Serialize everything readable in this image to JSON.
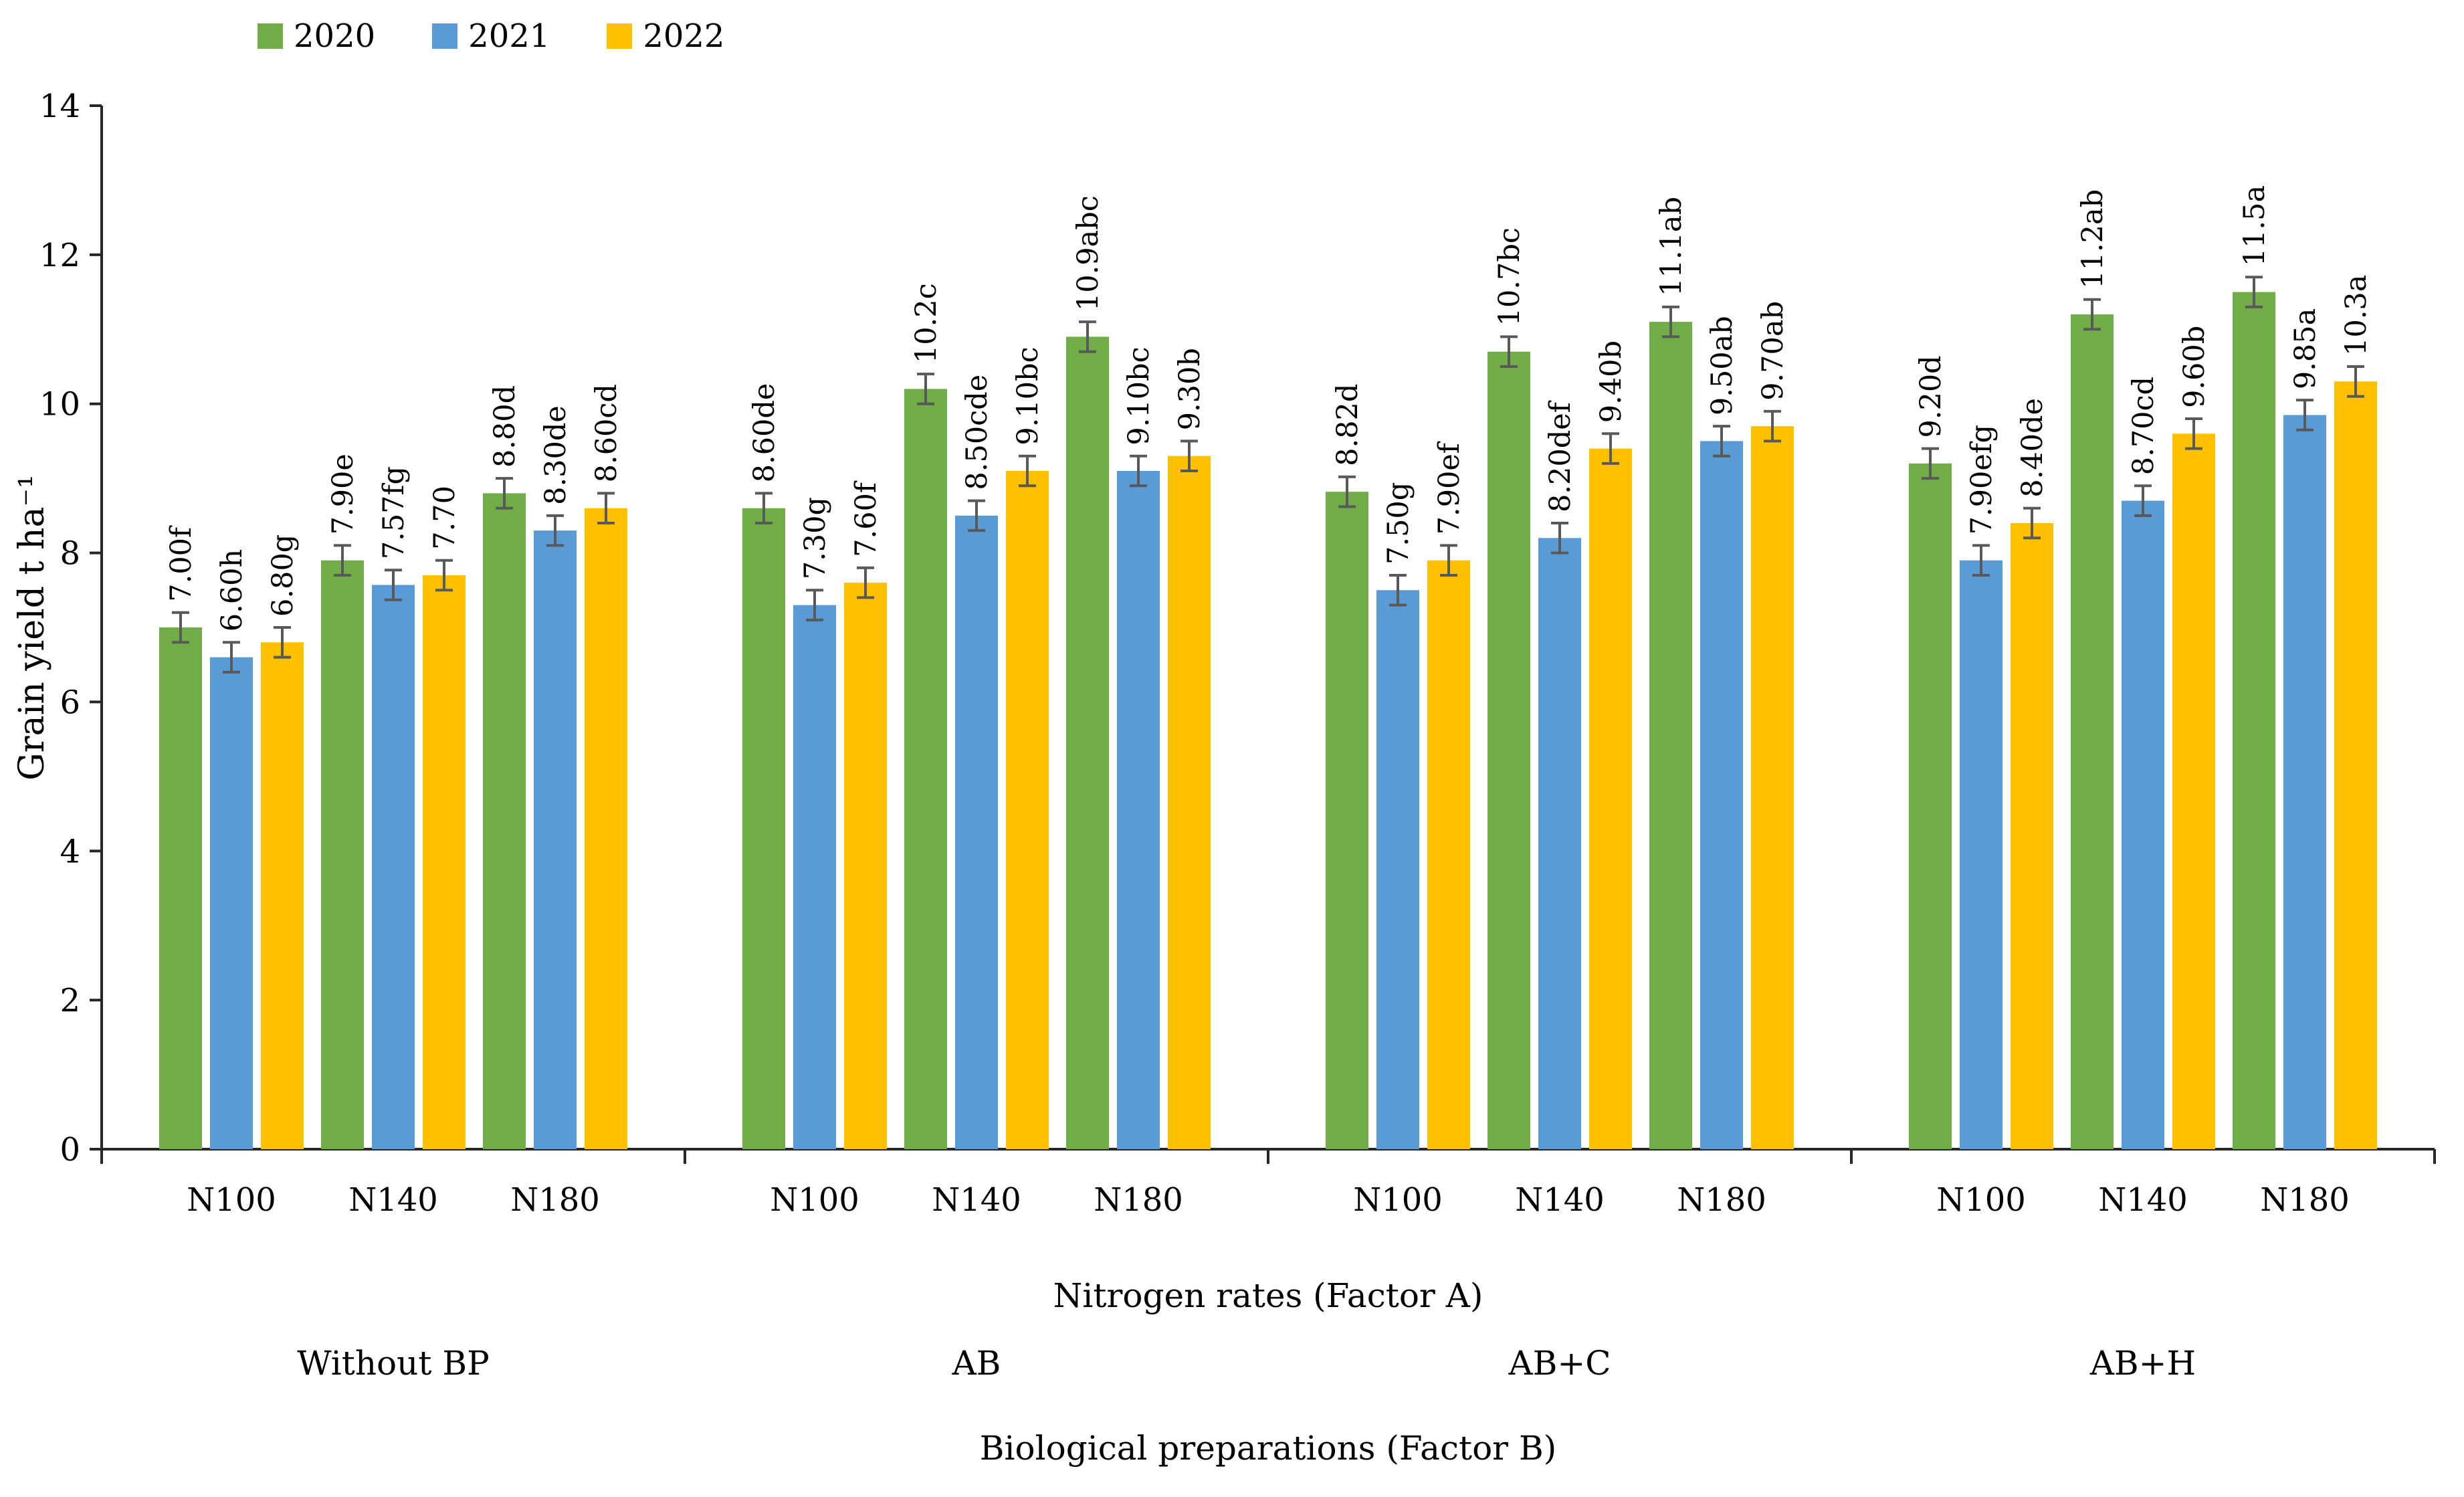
{
  "legend": [
    {
      "label": "2020",
      "color": "#70AD47"
    },
    {
      "label": "2021",
      "color": "#5B9BD5"
    },
    {
      "label": "2022",
      "color": "#FFC000"
    }
  ],
  "colors": {
    "axis": "#262626",
    "error_bar": "#595959",
    "text": "#000000"
  },
  "chart_data": {
    "type": "bar",
    "title": "",
    "ylabel": "Grain yield t ha⁻¹",
    "xlabel_level1": "Nitrogen rates (Factor A)",
    "xlabel_level2": "Biological preparations (Factor B)",
    "ylim": [
      0,
      14
    ],
    "yticks": [
      0,
      2,
      4,
      6,
      8,
      10,
      12,
      14
    ],
    "grid": false,
    "legend_position": "top-left",
    "error_bar_halfwidth": 0.2,
    "series_names": [
      "2020",
      "2021",
      "2022"
    ],
    "groups": [
      {
        "label": "Without BP",
        "subgroups": [
          {
            "label": "N100",
            "bars": [
              {
                "series": "2020",
                "value": 7.0,
                "label": "7.00f"
              },
              {
                "series": "2021",
                "value": 6.6,
                "label": "6.60h"
              },
              {
                "series": "2022",
                "value": 6.8,
                "label": "6.80g"
              }
            ]
          },
          {
            "label": "N140",
            "bars": [
              {
                "series": "2020",
                "value": 7.9,
                "label": "7.90e"
              },
              {
                "series": "2021",
                "value": 7.57,
                "label": "7.57fg"
              },
              {
                "series": "2022",
                "value": 7.7,
                "label": "7.70"
              }
            ]
          },
          {
            "label": "N180",
            "bars": [
              {
                "series": "2020",
                "value": 8.8,
                "label": "8.80d"
              },
              {
                "series": "2021",
                "value": 8.3,
                "label": "8.30de"
              },
              {
                "series": "2022",
                "value": 8.6,
                "label": "8.60cd"
              }
            ]
          }
        ]
      },
      {
        "label": "AB",
        "subgroups": [
          {
            "label": "N100",
            "bars": [
              {
                "series": "2020",
                "value": 8.6,
                "label": "8.60de"
              },
              {
                "series": "2021",
                "value": 7.3,
                "label": "7.30g"
              },
              {
                "series": "2022",
                "value": 7.6,
                "label": "7.60f"
              }
            ]
          },
          {
            "label": "N140",
            "bars": [
              {
                "series": "2020",
                "value": 10.2,
                "label": "10.2c"
              },
              {
                "series": "2021",
                "value": 8.5,
                "label": "8.50cde"
              },
              {
                "series": "2022",
                "value": 9.1,
                "label": "9.10bc"
              }
            ]
          },
          {
            "label": "N180",
            "bars": [
              {
                "series": "2020",
                "value": 10.9,
                "label": "10.9abc"
              },
              {
                "series": "2021",
                "value": 9.1,
                "label": "9.10bc"
              },
              {
                "series": "2022",
                "value": 9.3,
                "label": "9.30b"
              }
            ]
          }
        ]
      },
      {
        "label": "AB+C",
        "subgroups": [
          {
            "label": "N100",
            "bars": [
              {
                "series": "2020",
                "value": 8.82,
                "label": "8.82d"
              },
              {
                "series": "2021",
                "value": 7.5,
                "label": "7.50g"
              },
              {
                "series": "2022",
                "value": 7.9,
                "label": "7.90ef"
              }
            ]
          },
          {
            "label": "N140",
            "bars": [
              {
                "series": "2020",
                "value": 10.7,
                "label": "10.7bc"
              },
              {
                "series": "2021",
                "value": 8.2,
                "label": "8.20def"
              },
              {
                "series": "2022",
                "value": 9.4,
                "label": "9.40b"
              }
            ]
          },
          {
            "label": "N180",
            "bars": [
              {
                "series": "2020",
                "value": 11.1,
                "label": "11.1ab"
              },
              {
                "series": "2021",
                "value": 9.5,
                "label": "9.50ab"
              },
              {
                "series": "2022",
                "value": 9.7,
                "label": "9.70ab"
              }
            ]
          }
        ]
      },
      {
        "label": "AB+H",
        "subgroups": [
          {
            "label": "N100",
            "bars": [
              {
                "series": "2020",
                "value": 9.2,
                "label": "9.20d"
              },
              {
                "series": "2021",
                "value": 7.9,
                "label": "7.90efg"
              },
              {
                "series": "2022",
                "value": 8.4,
                "label": "8.40de"
              }
            ]
          },
          {
            "label": "N140",
            "bars": [
              {
                "series": "2020",
                "value": 11.2,
                "label": "11.2ab"
              },
              {
                "series": "2021",
                "value": 8.7,
                "label": "8.70cd"
              },
              {
                "series": "2022",
                "value": 9.6,
                "label": "9.60b"
              }
            ]
          },
          {
            "label": "N180",
            "bars": [
              {
                "series": "2020",
                "value": 11.5,
                "label": "11.5a"
              },
              {
                "series": "2021",
                "value": 9.85,
                "label": "9.85a"
              },
              {
                "series": "2022",
                "value": 10.3,
                "label": "10.3a"
              }
            ]
          }
        ]
      }
    ]
  }
}
